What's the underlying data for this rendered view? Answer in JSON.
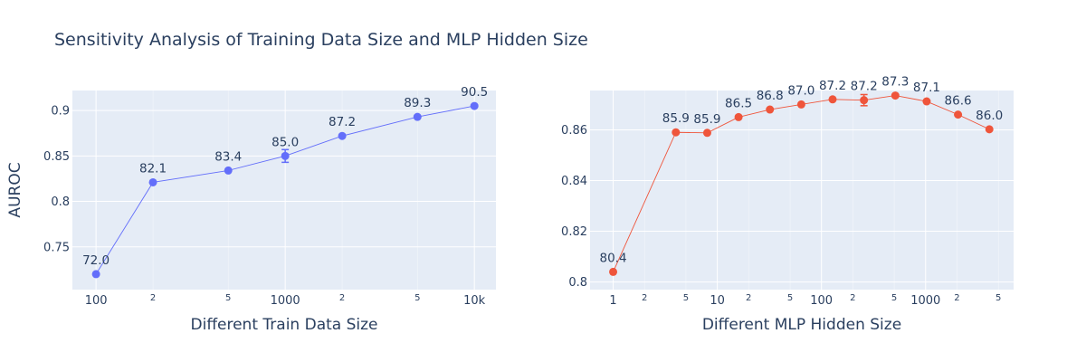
{
  "title": "Sensitivity Analysis of Training Data Size and MLP Hidden Size",
  "ylabel": "AUROC",
  "colors": {
    "plot_bg": "#e5ecf6",
    "grid": "#ffffff",
    "text": "#2a3f5f"
  },
  "chart_data": [
    {
      "type": "line",
      "xlabel": "Different Train Data Size",
      "xscale": "log",
      "xlim": [
        75,
        13000
      ],
      "ylim": [
        0.703,
        0.922
      ],
      "yticks": [
        0.75,
        0.8,
        0.85,
        0.9
      ],
      "ytick_labels": [
        "0.75",
        "0.8",
        "0.85",
        "0.9"
      ],
      "xticks_major": [
        100,
        1000,
        10000
      ],
      "xtick_labels_major": [
        "100",
        "1000",
        "10k"
      ],
      "xticks_minor": [
        200,
        500,
        2000,
        5000
      ],
      "xtick_labels_minor": [
        "2",
        "5",
        "2",
        "5"
      ],
      "color": "#636efa",
      "series": [
        {
          "x": [
            100,
            200,
            500,
            1000,
            2000,
            5000,
            10000
          ],
          "y": [
            0.72,
            0.821,
            0.834,
            0.85,
            0.872,
            0.893,
            0.905
          ],
          "error": [
            0,
            0,
            0,
            0.007,
            0,
            0,
            0
          ],
          "labels": [
            "72.0",
            "82.1",
            "83.4",
            "85.0",
            "87.2",
            "89.3",
            "90.5"
          ]
        }
      ]
    },
    {
      "type": "line",
      "xlabel": "Different MLP Hidden Size",
      "xscale": "log",
      "xlim": [
        0.6,
        7000
      ],
      "ylim": [
        0.797,
        0.8755
      ],
      "yticks": [
        0.8,
        0.82,
        0.84,
        0.86
      ],
      "ytick_labels": [
        "0.8",
        "0.82",
        "0.84",
        "0.86"
      ],
      "xticks_major": [
        1,
        10,
        100,
        1000
      ],
      "xtick_labels_major": [
        "1",
        "10",
        "100",
        "1000"
      ],
      "xticks_minor": [
        2,
        5,
        20,
        50,
        200,
        500,
        2000,
        5000
      ],
      "xtick_labels_minor": [
        "2",
        "5",
        "2",
        "5",
        "2",
        "5",
        "2",
        "5"
      ],
      "color": "#ef553b",
      "series": [
        {
          "x": [
            1,
            4,
            8,
            16,
            32,
            64,
            128,
            256,
            512,
            1024,
            2048,
            4096
          ],
          "y": [
            0.804,
            0.859,
            0.8588,
            0.865,
            0.868,
            0.87,
            0.872,
            0.8717,
            0.8735,
            0.8712,
            0.866,
            0.8602
          ],
          "error": [
            0,
            0,
            0,
            0,
            0,
            0,
            0,
            0.0022,
            0,
            0,
            0,
            0
          ],
          "labels": [
            "80.4",
            "85.9",
            "85.9",
            "86.5",
            "86.8",
            "87.0",
            "87.2",
            "87.2",
            "87.3",
            "87.1",
            "86.6",
            "86.0"
          ]
        }
      ]
    }
  ]
}
